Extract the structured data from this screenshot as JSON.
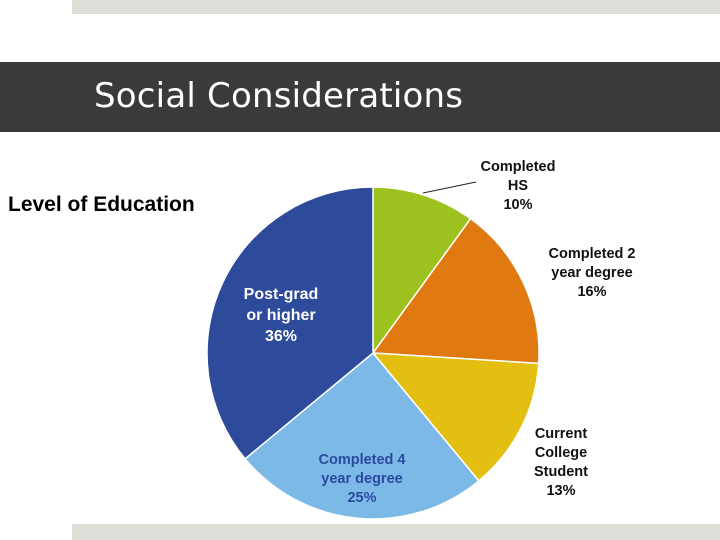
{
  "slide": {
    "title": "Social Considerations",
    "subtitle": "Level of Education"
  },
  "chart_data": {
    "type": "pie",
    "title": "",
    "slices": [
      {
        "name": "Completed HS",
        "label_lines": [
          "Completed",
          "HS"
        ],
        "value": 10,
        "display": "10%",
        "color": "#9dc21f"
      },
      {
        "name": "Completed 2 year degree",
        "label_lines": [
          "Completed 2",
          "year degree"
        ],
        "value": 16,
        "display": "16%",
        "color": "#e07a10"
      },
      {
        "name": "Current College Student",
        "label_lines": [
          "Current",
          "College",
          "Student"
        ],
        "value": 13,
        "display": "13%",
        "color": "#e2bf10"
      },
      {
        "name": "Completed 4 year degree",
        "label_lines": [
          "Completed 4",
          "year degree"
        ],
        "value": 25,
        "display": "25%",
        "color": "#7db9e6"
      },
      {
        "name": "Post-grad or higher",
        "label_lines": [
          "Post-grad",
          "or higher"
        ],
        "value": 36,
        "display": "36%",
        "color": "#2d4b9a"
      }
    ],
    "start_angle": "12 o'clock",
    "direction": "clockwise",
    "legend": "none"
  }
}
